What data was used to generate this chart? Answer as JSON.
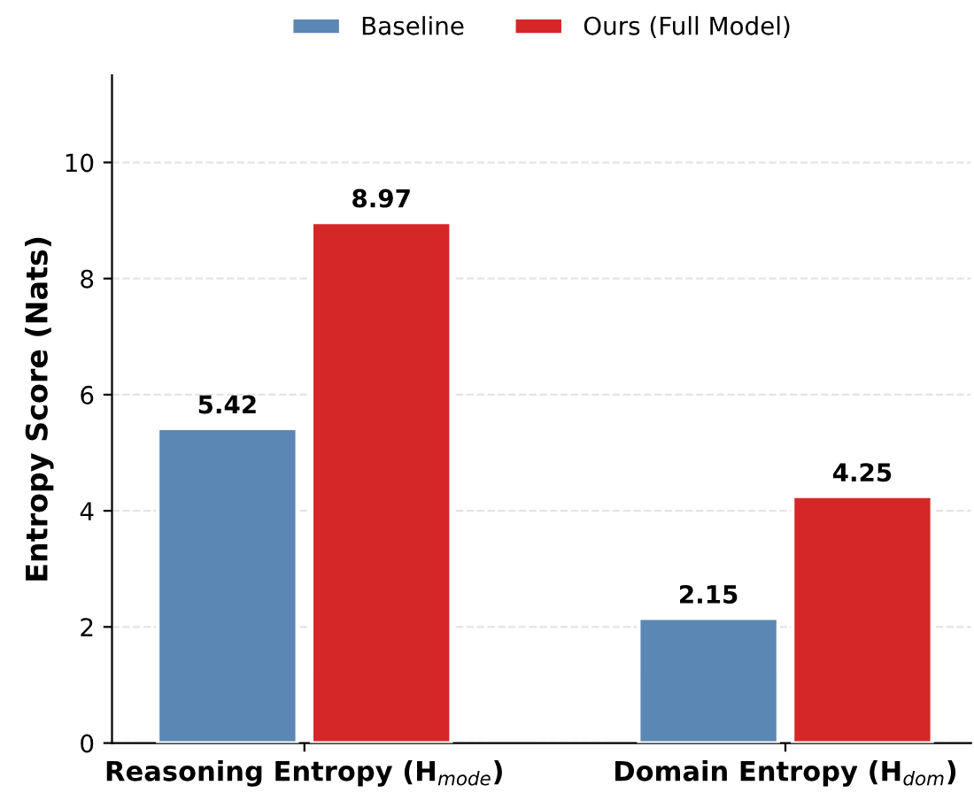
{
  "chart_data": {
    "type": "bar",
    "ylabel": "Entropy Score (Nats)",
    "categories": [
      "Reasoning Entropy (H$_{mode}$)",
      "Domain Entropy (H$_{dom}$)"
    ],
    "series": [
      {
        "name": "Baseline",
        "color": "#5b87b4",
        "values": [
          5.42,
          2.15
        ]
      },
      {
        "name": "Ours (Full Model)",
        "color": "#d62728",
        "values": [
          8.97,
          4.25
        ]
      }
    ],
    "ylim": [
      0,
      11.5
    ],
    "yticks": [
      0,
      2,
      4,
      6,
      8,
      10
    ],
    "grid": "y",
    "legend": "top",
    "data_labels": true
  }
}
